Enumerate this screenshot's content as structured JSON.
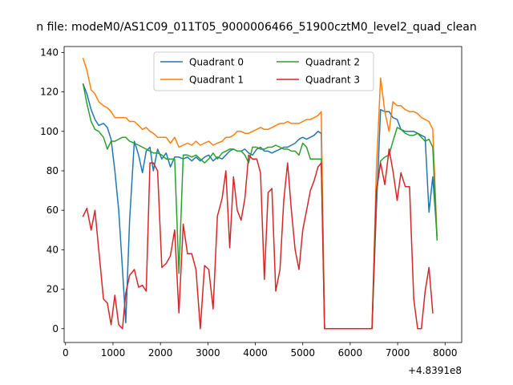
{
  "chart_data": {
    "type": "line",
    "title": "n file: modeM0/AS1C09_011T05_9000006466_51900cztM0_level2_quad_clean",
    "xlabel": "",
    "ylabel": "",
    "x_offset_label": "+4.8391e8",
    "xlim": [
      -30,
      8350
    ],
    "ylim": [
      -7,
      143
    ],
    "x_ticks": [
      0,
      1000,
      2000,
      3000,
      4000,
      5000,
      6000,
      7000,
      8000
    ],
    "x_tick_labels": [
      "0",
      "1000",
      "2000",
      "3000",
      "4000",
      "5000",
      "6000",
      "7000",
      "8000"
    ],
    "y_ticks": [
      0,
      20,
      40,
      60,
      80,
      100,
      120,
      140
    ],
    "y_tick_labels": [
      "0",
      "20",
      "40",
      "60",
      "80",
      "100",
      "120",
      "140"
    ],
    "grid": false,
    "legend_position": "top-center",
    "legend_columns": 2,
    "series": [
      {
        "name": "Quadrant 0",
        "color": "#1f77b4",
        "points": [
          [
            370,
            124
          ],
          [
            450,
            119
          ],
          [
            540,
            111
          ],
          [
            620,
            106
          ],
          [
            700,
            103
          ],
          [
            800,
            104
          ],
          [
            880,
            102
          ],
          [
            960,
            96
          ],
          [
            1040,
            80
          ],
          [
            1120,
            60
          ],
          [
            1200,
            30
          ],
          [
            1270,
            3
          ],
          [
            1350,
            55
          ],
          [
            1450,
            95
          ],
          [
            1540,
            88
          ],
          [
            1620,
            79
          ],
          [
            1700,
            90
          ],
          [
            1780,
            92
          ],
          [
            1850,
            80
          ],
          [
            1940,
            91
          ],
          [
            2030,
            86
          ],
          [
            2120,
            89
          ],
          [
            2210,
            82
          ],
          [
            2300,
            87
          ],
          [
            2390,
            87
          ],
          [
            2480,
            86
          ],
          [
            2570,
            87
          ],
          [
            2660,
            85
          ],
          [
            2750,
            87
          ],
          [
            2840,
            85
          ],
          [
            2930,
            87
          ],
          [
            3020,
            88
          ],
          [
            3110,
            85
          ],
          [
            3200,
            87
          ],
          [
            3300,
            86
          ],
          [
            3380,
            88
          ],
          [
            3460,
            90
          ],
          [
            3540,
            91
          ],
          [
            3620,
            90
          ],
          [
            3700,
            90
          ],
          [
            3780,
            91
          ],
          [
            3860,
            89
          ],
          [
            3940,
            88
          ],
          [
            4030,
            91
          ],
          [
            4110,
            92
          ],
          [
            4190,
            90
          ],
          [
            4270,
            90
          ],
          [
            4350,
            89
          ],
          [
            4430,
            90
          ],
          [
            4520,
            91
          ],
          [
            4600,
            92
          ],
          [
            4680,
            92
          ],
          [
            4760,
            93
          ],
          [
            4840,
            94
          ],
          [
            4920,
            96
          ],
          [
            5000,
            97
          ],
          [
            5080,
            96
          ],
          [
            5160,
            97
          ],
          [
            5240,
            98
          ],
          [
            5320,
            100
          ],
          [
            5390,
            99
          ],
          [
            5460,
            0
          ],
          [
            6460,
            0
          ],
          [
            6550,
            60
          ],
          [
            6640,
            111
          ],
          [
            6730,
            110
          ],
          [
            6820,
            110
          ],
          [
            6900,
            107
          ],
          [
            6990,
            106
          ],
          [
            7070,
            101
          ],
          [
            7160,
            100
          ],
          [
            7250,
            100
          ],
          [
            7340,
            100
          ],
          [
            7420,
            99
          ],
          [
            7500,
            98
          ],
          [
            7580,
            97
          ],
          [
            7660,
            59
          ],
          [
            7740,
            77
          ],
          [
            7830,
            47
          ]
        ]
      },
      {
        "name": "Quadrant 1",
        "color": "#ff7f0e",
        "points": [
          [
            370,
            137
          ],
          [
            450,
            131
          ],
          [
            540,
            121
          ],
          [
            620,
            119
          ],
          [
            700,
            115
          ],
          [
            800,
            113
          ],
          [
            880,
            112
          ],
          [
            960,
            110
          ],
          [
            1040,
            107
          ],
          [
            1120,
            107
          ],
          [
            1200,
            107
          ],
          [
            1270,
            107
          ],
          [
            1350,
            105
          ],
          [
            1450,
            105
          ],
          [
            1540,
            103
          ],
          [
            1620,
            101
          ],
          [
            1700,
            102
          ],
          [
            1780,
            100
          ],
          [
            1850,
            99
          ],
          [
            1940,
            97
          ],
          [
            2030,
            97
          ],
          [
            2120,
            97
          ],
          [
            2210,
            94
          ],
          [
            2300,
            97
          ],
          [
            2390,
            92
          ],
          [
            2480,
            93
          ],
          [
            2570,
            94
          ],
          [
            2660,
            93
          ],
          [
            2750,
            95
          ],
          [
            2840,
            93
          ],
          [
            2930,
            94
          ],
          [
            3020,
            95
          ],
          [
            3110,
            93
          ],
          [
            3200,
            94
          ],
          [
            3300,
            95
          ],
          [
            3380,
            97
          ],
          [
            3460,
            97
          ],
          [
            3540,
            98
          ],
          [
            3620,
            100
          ],
          [
            3700,
            100
          ],
          [
            3780,
            99
          ],
          [
            3860,
            99
          ],
          [
            3940,
            100
          ],
          [
            4030,
            101
          ],
          [
            4110,
            102
          ],
          [
            4190,
            101
          ],
          [
            4270,
            101
          ],
          [
            4350,
            102
          ],
          [
            4430,
            103
          ],
          [
            4520,
            104
          ],
          [
            4600,
            104
          ],
          [
            4680,
            105
          ],
          [
            4760,
            104
          ],
          [
            4840,
            104
          ],
          [
            4920,
            104
          ],
          [
            5000,
            105
          ],
          [
            5080,
            106
          ],
          [
            5160,
            106
          ],
          [
            5240,
            107
          ],
          [
            5320,
            108
          ],
          [
            5390,
            110
          ],
          [
            5460,
            0
          ],
          [
            6460,
            0
          ],
          [
            6550,
            80
          ],
          [
            6640,
            127
          ],
          [
            6730,
            110
          ],
          [
            6820,
            100
          ],
          [
            6900,
            115
          ],
          [
            6990,
            113
          ],
          [
            7070,
            113
          ],
          [
            7160,
            111
          ],
          [
            7250,
            110
          ],
          [
            7340,
            110
          ],
          [
            7420,
            109
          ],
          [
            7500,
            107
          ],
          [
            7580,
            106
          ],
          [
            7660,
            105
          ],
          [
            7740,
            101
          ],
          [
            7830,
            47
          ]
        ]
      },
      {
        "name": "Quadrant 2",
        "color": "#2ca02c",
        "points": [
          [
            370,
            124
          ],
          [
            450,
            114
          ],
          [
            540,
            105
          ],
          [
            620,
            101
          ],
          [
            700,
            100
          ],
          [
            800,
            97
          ],
          [
            880,
            91
          ],
          [
            960,
            95
          ],
          [
            1040,
            95
          ],
          [
            1120,
            96
          ],
          [
            1200,
            97
          ],
          [
            1270,
            97
          ],
          [
            1350,
            95
          ],
          [
            1450,
            94
          ],
          [
            1540,
            93
          ],
          [
            1620,
            92
          ],
          [
            1700,
            91
          ],
          [
            1780,
            90
          ],
          [
            1850,
            89
          ],
          [
            1940,
            89
          ],
          [
            2030,
            88
          ],
          [
            2120,
            86
          ],
          [
            2210,
            86
          ],
          [
            2300,
            86
          ],
          [
            2390,
            28
          ],
          [
            2480,
            88
          ],
          [
            2570,
            88
          ],
          [
            2660,
            87
          ],
          [
            2750,
            88
          ],
          [
            2840,
            86
          ],
          [
            2930,
            84
          ],
          [
            3020,
            86
          ],
          [
            3110,
            89
          ],
          [
            3200,
            86
          ],
          [
            3300,
            89
          ],
          [
            3380,
            90
          ],
          [
            3460,
            91
          ],
          [
            3540,
            91
          ],
          [
            3620,
            90
          ],
          [
            3700,
            90
          ],
          [
            3780,
            88
          ],
          [
            3860,
            84
          ],
          [
            3940,
            92
          ],
          [
            4030,
            92
          ],
          [
            4110,
            91
          ],
          [
            4190,
            91
          ],
          [
            4270,
            92
          ],
          [
            4350,
            92
          ],
          [
            4430,
            93
          ],
          [
            4520,
            92
          ],
          [
            4600,
            91
          ],
          [
            4680,
            91
          ],
          [
            4760,
            90
          ],
          [
            4840,
            90
          ],
          [
            4920,
            88
          ],
          [
            5000,
            94
          ],
          [
            5080,
            92
          ],
          [
            5160,
            86
          ],
          [
            5240,
            86
          ],
          [
            5320,
            86
          ],
          [
            5390,
            86
          ],
          [
            5460,
            0
          ],
          [
            6460,
            0
          ],
          [
            6550,
            68
          ],
          [
            6640,
            85
          ],
          [
            6730,
            87
          ],
          [
            6820,
            88
          ],
          [
            6900,
            95
          ],
          [
            6990,
            102
          ],
          [
            7070,
            101
          ],
          [
            7160,
            99
          ],
          [
            7250,
            98
          ],
          [
            7340,
            98
          ],
          [
            7420,
            99
          ],
          [
            7500,
            97
          ],
          [
            7580,
            95
          ],
          [
            7660,
            96
          ],
          [
            7740,
            92
          ],
          [
            7830,
            45
          ]
        ]
      },
      {
        "name": "Quadrant 3",
        "color": "#d62728",
        "points": [
          [
            370,
            57
          ],
          [
            450,
            61
          ],
          [
            540,
            50
          ],
          [
            620,
            60
          ],
          [
            700,
            40
          ],
          [
            800,
            15
          ],
          [
            880,
            13
          ],
          [
            960,
            2
          ],
          [
            1040,
            17
          ],
          [
            1120,
            2
          ],
          [
            1200,
            0
          ],
          [
            1270,
            18
          ],
          [
            1350,
            27
          ],
          [
            1450,
            30
          ],
          [
            1540,
            21
          ],
          [
            1620,
            22
          ],
          [
            1700,
            19
          ],
          [
            1780,
            84
          ],
          [
            1850,
            84
          ],
          [
            1940,
            80
          ],
          [
            2030,
            31
          ],
          [
            2120,
            33
          ],
          [
            2210,
            37
          ],
          [
            2300,
            50
          ],
          [
            2390,
            8
          ],
          [
            2480,
            53
          ],
          [
            2570,
            38
          ],
          [
            2660,
            38
          ],
          [
            2750,
            30
          ],
          [
            2840,
            0
          ],
          [
            2930,
            32
          ],
          [
            3020,
            30
          ],
          [
            3110,
            10
          ],
          [
            3200,
            57
          ],
          [
            3300,
            66
          ],
          [
            3380,
            80
          ],
          [
            3460,
            41
          ],
          [
            3540,
            77
          ],
          [
            3620,
            60
          ],
          [
            3700,
            55
          ],
          [
            3780,
            66
          ],
          [
            3860,
            88
          ],
          [
            3940,
            86
          ],
          [
            4030,
            86
          ],
          [
            4110,
            79
          ],
          [
            4190,
            25
          ],
          [
            4270,
            69
          ],
          [
            4350,
            71
          ],
          [
            4430,
            19
          ],
          [
            4520,
            30
          ],
          [
            4600,
            65
          ],
          [
            4680,
            84
          ],
          [
            4760,
            60
          ],
          [
            4840,
            40
          ],
          [
            4920,
            30
          ],
          [
            5000,
            50
          ],
          [
            5080,
            60
          ],
          [
            5160,
            70
          ],
          [
            5240,
            75
          ],
          [
            5320,
            82
          ],
          [
            5390,
            84
          ],
          [
            5460,
            0
          ],
          [
            6460,
            0
          ],
          [
            6550,
            70
          ],
          [
            6640,
            84
          ],
          [
            6730,
            73
          ],
          [
            6820,
            91
          ],
          [
            6900,
            80
          ],
          [
            6990,
            65
          ],
          [
            7070,
            79
          ],
          [
            7160,
            72
          ],
          [
            7250,
            72
          ],
          [
            7340,
            15
          ],
          [
            7420,
            0
          ],
          [
            7500,
            0
          ],
          [
            7580,
            19
          ],
          [
            7660,
            31
          ],
          [
            7740,
            8
          ]
        ]
      }
    ]
  }
}
